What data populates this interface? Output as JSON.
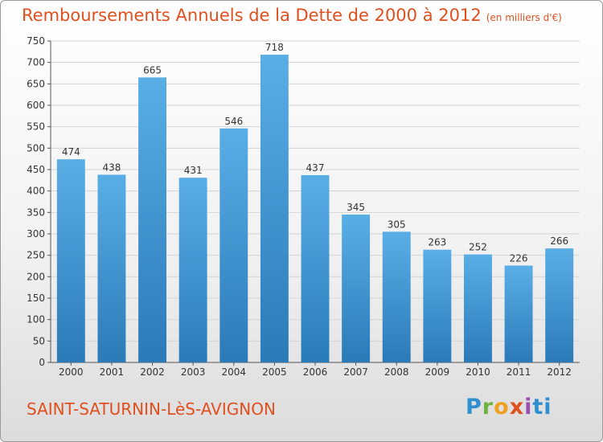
{
  "title": "Remboursements Annuels de la Dette de 2000 à 2012",
  "unit": "(en milliers d'€)",
  "commune": "SAINT-SATURNIN-LèS-AVIGNON",
  "logo": "Proxiti",
  "colors": {
    "title": "#e0501e",
    "bar_light": "#5aaee6",
    "bar_dark": "#2a7ab8",
    "grid": "#d4d4d4"
  },
  "chart_data": {
    "type": "bar",
    "title": "Remboursements Annuels de la Dette de 2000 à 2012",
    "xlabel": "",
    "ylabel": "",
    "categories": [
      "2000",
      "2001",
      "2002",
      "2003",
      "2004",
      "2005",
      "2006",
      "2007",
      "2008",
      "2009",
      "2010",
      "2011",
      "2012"
    ],
    "values": [
      474,
      438,
      665,
      431,
      546,
      718,
      437,
      345,
      305,
      263,
      252,
      226,
      266
    ],
    "ylim": [
      0,
      750
    ],
    "yticks": [
      0,
      50,
      100,
      150,
      200,
      250,
      300,
      350,
      400,
      450,
      500,
      550,
      600,
      650,
      700,
      750
    ],
    "grid": true,
    "data_labels": true
  }
}
